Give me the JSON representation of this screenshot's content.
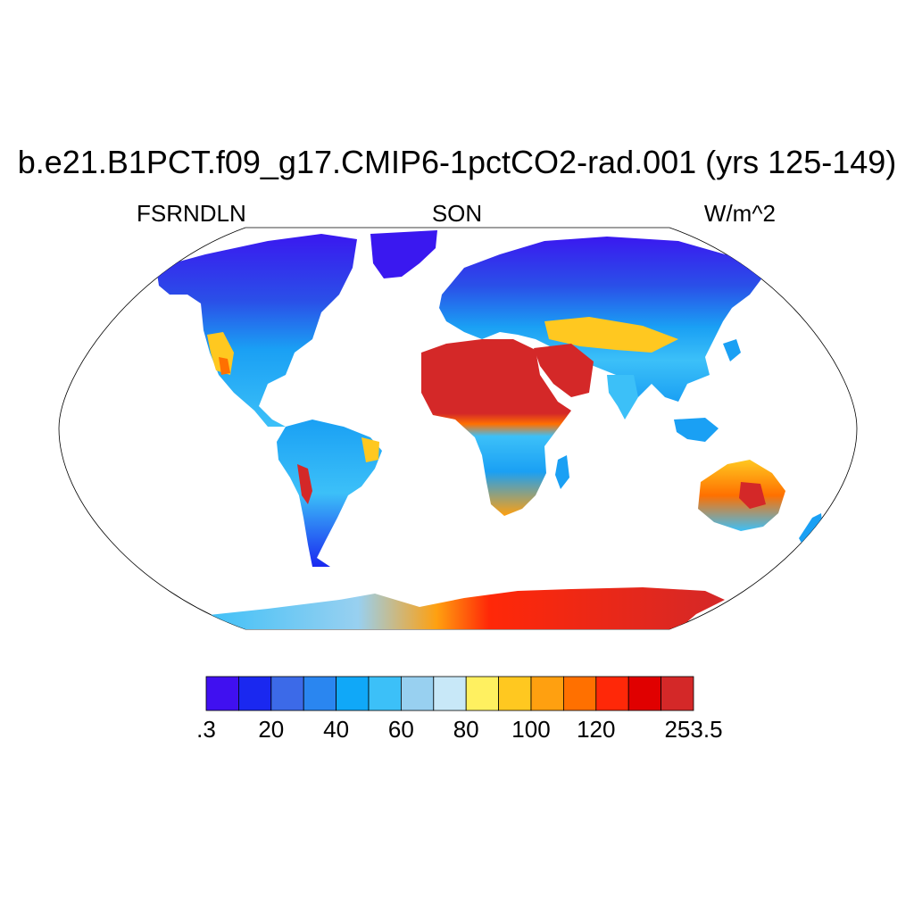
{
  "title": "b.e21.B1PCT.f09_g17.CMIP6-1pctCO2-rad.001 (yrs 125-149)",
  "left_label": "FSRNDLN",
  "center_label": "SON",
  "right_label": "W/m^2",
  "colorbar": {
    "colors": [
      "#4010f0",
      "#1a28f0",
      "#3c6ae8",
      "#2a86f0",
      "#10a8f8",
      "#3cc0f8",
      "#98d0f0",
      "#c8e8f8",
      "#fff060",
      "#ffc820",
      "#ffa010",
      "#ff7000",
      "#ff2808",
      "#e00000",
      "#d42828"
    ],
    "tick_labels": [
      ".3",
      "20",
      "40",
      "60",
      "80",
      "100",
      "120",
      "253.5"
    ],
    "tick_boundaries": [
      0,
      2,
      4,
      6,
      8,
      10,
      12,
      15
    ]
  },
  "land_colors": {
    "arctic": "#3a18f0",
    "boreal": "#2a50e8",
    "temperate": "#1aa0f4",
    "humid": "#3cc0f8",
    "savanna": "#98d0f0",
    "warm": "#ffc820",
    "hot": "#ff7000",
    "desert": "#d42828",
    "antarctic_coast": "#3cc0f8"
  }
}
